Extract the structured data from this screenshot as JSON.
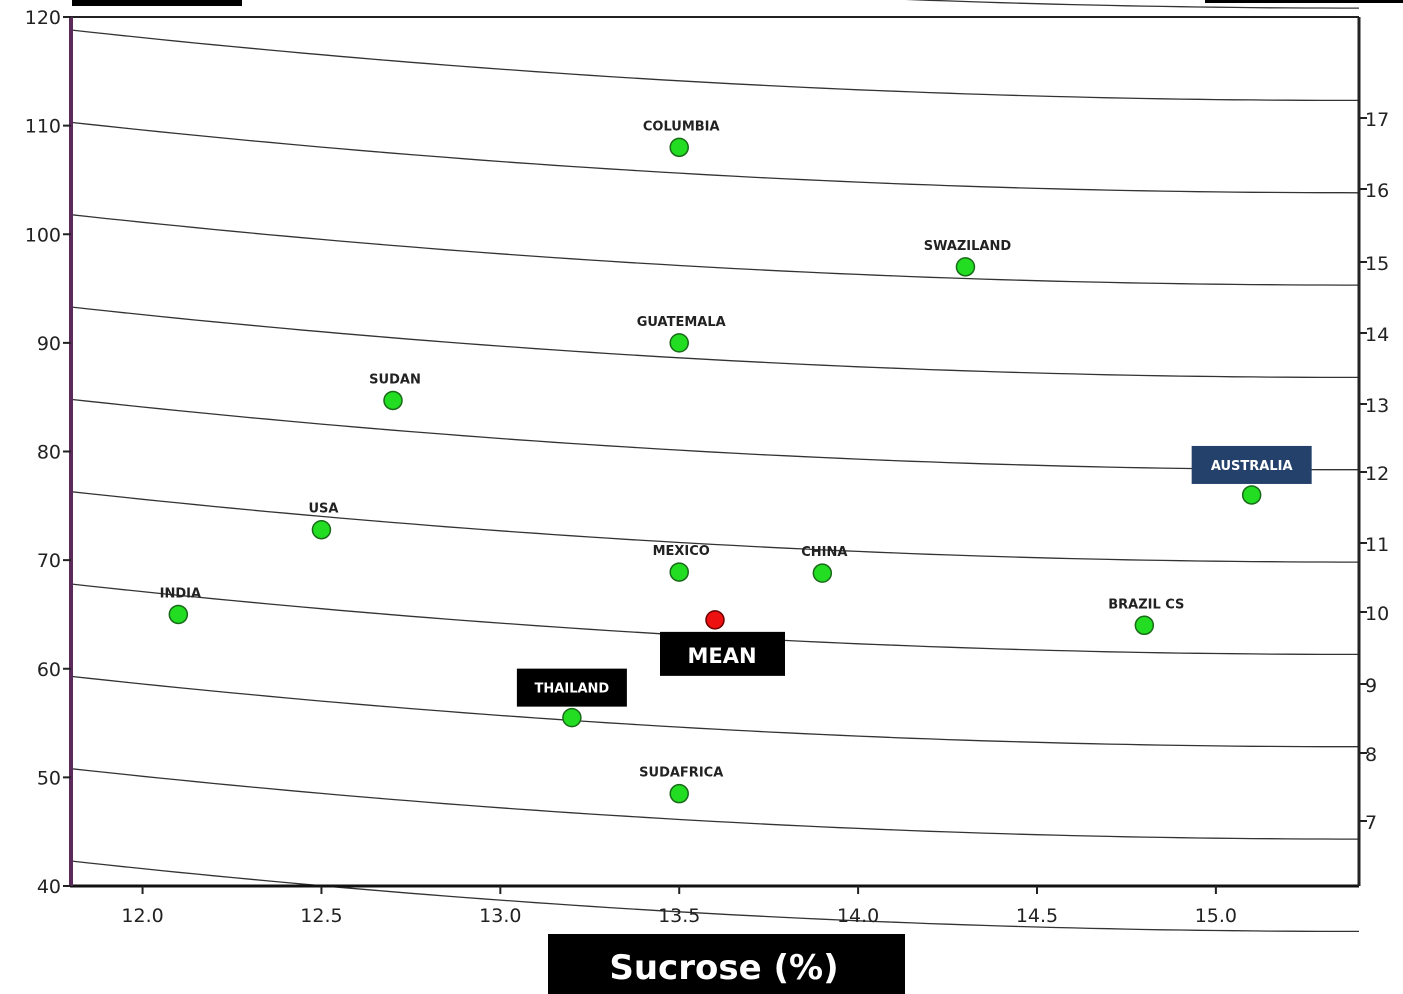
{
  "chart_data": {
    "type": "scatter",
    "title": "",
    "xlabel": "Sucrose (%)",
    "ylabel": "",
    "xlim": [
      11.8,
      15.4
    ],
    "ylim": [
      40,
      120
    ],
    "x_ticks": [
      "12.0",
      "12.5",
      "13.0",
      "13.5",
      "14.0",
      "14.5",
      "15.0"
    ],
    "y_ticks": [
      "40",
      "50",
      "60",
      "70",
      "80",
      "90",
      "100",
      "110",
      "120"
    ],
    "right_axis_ticks": [
      "7",
      "8",
      "9",
      "10",
      "11",
      "12",
      "13",
      "14",
      "15",
      "16",
      "17"
    ],
    "grid": false,
    "colors": {
      "point": "#22dd22",
      "mean": "#ee1111",
      "label_box_dark": "#000000",
      "label_box_blue": "#23416b",
      "axis": "#5a2a5a"
    },
    "contour_values": [
      7,
      8,
      9,
      10,
      11,
      12,
      13,
      14,
      15,
      16,
      17
    ],
    "points": [
      {
        "label": "COLUMBIA",
        "x": 13.5,
        "y": 108
      },
      {
        "label": "SWAZILAND",
        "x": 14.3,
        "y": 97
      },
      {
        "label": "GUATEMALA",
        "x": 13.5,
        "y": 90
      },
      {
        "label": "SUDAN",
        "x": 12.7,
        "y": 84.7
      },
      {
        "label": "AUSTRALIA",
        "x": 15.1,
        "y": 76,
        "style": "box-blue"
      },
      {
        "label": "USA",
        "x": 12.5,
        "y": 72.8
      },
      {
        "label": "MEXICO",
        "x": 13.5,
        "y": 68.9
      },
      {
        "label": "CHINA",
        "x": 13.9,
        "y": 68.8
      },
      {
        "label": "INDIA",
        "x": 12.1,
        "y": 65
      },
      {
        "label": "BRAZIL CS",
        "x": 14.8,
        "y": 64
      },
      {
        "label": "THAILAND",
        "x": 13.2,
        "y": 55.5,
        "style": "box-dark"
      },
      {
        "label": "SUDAFRICA",
        "x": 13.5,
        "y": 48.5
      }
    ],
    "mean": {
      "label": "MEAN",
      "x": 13.6,
      "y": 64.5
    }
  }
}
